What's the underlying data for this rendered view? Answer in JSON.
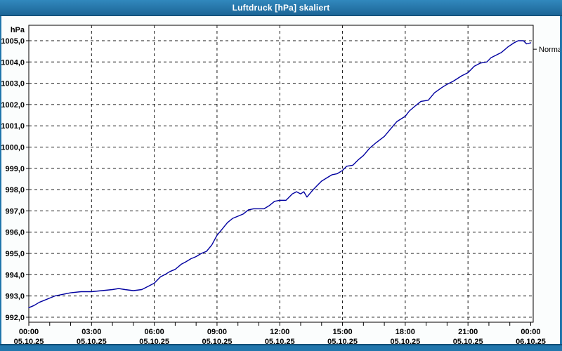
{
  "window": {
    "title": "Luftdruck [hPa] skaliert",
    "frame_color": "#2176ac",
    "titlebar_top_color": "#3188bd",
    "titlebar_bottom_color": "#1c6596"
  },
  "chart_data": {
    "type": "line",
    "title": "Luftdruck [hPa] skaliert",
    "grid": true,
    "plot_background": "#ffffff",
    "grid_color": "#1a1a1a",
    "ylim": [
      991.75,
      1005.73
    ],
    "xlim_hours": [
      0,
      24
    ],
    "y_axis": {
      "unit_label": "hPa",
      "ticks": [
        {
          "value": 1005,
          "label": "1005,0"
        },
        {
          "value": 1004,
          "label": "1004,0"
        },
        {
          "value": 1003,
          "label": "1003,0"
        },
        {
          "value": 1002,
          "label": "1002,0"
        },
        {
          "value": 1001,
          "label": "1001,0"
        },
        {
          "value": 1000,
          "label": "1000,0"
        },
        {
          "value": 999,
          "label": "999,0"
        },
        {
          "value": 998,
          "label": "998,0"
        },
        {
          "value": 997,
          "label": "997,0"
        },
        {
          "value": 996,
          "label": "996,0"
        },
        {
          "value": 995,
          "label": "995,0"
        },
        {
          "value": 994,
          "label": "994,0"
        },
        {
          "value": 993,
          "label": "993,0"
        },
        {
          "value": 992,
          "label": "992,0"
        }
      ]
    },
    "x_axis": {
      "minor_tick_hours": 1,
      "gridline_hours": [
        3,
        6,
        9,
        12,
        15,
        18,
        21
      ],
      "labels": [
        {
          "hour": 0,
          "time": "00:00",
          "date": "05.10.25"
        },
        {
          "hour": 3,
          "time": "03:00",
          "date": "05.10.25"
        },
        {
          "hour": 6,
          "time": "06:00",
          "date": "05.10.25"
        },
        {
          "hour": 9,
          "time": "09:00",
          "date": "05.10.25"
        },
        {
          "hour": 12,
          "time": "12:00",
          "date": "05.10.25"
        },
        {
          "hour": 15,
          "time": "15:00",
          "date": "05.10.25"
        },
        {
          "hour": 18,
          "time": "18:00",
          "date": "05.10.25"
        },
        {
          "hour": 21,
          "time": "21:00",
          "date": "05.10.25"
        },
        {
          "hour": 24,
          "time": "00:00",
          "date": "06.10.25"
        }
      ]
    },
    "series": [
      {
        "name": "Luftdruck",
        "color": "#0000a0",
        "points_hour_hpa": [
          [
            0,
            992.45
          ],
          [
            0.25,
            992.55
          ],
          [
            0.5,
            992.7
          ],
          [
            0.75,
            992.8
          ],
          [
            1,
            992.9
          ],
          [
            1.25,
            993.0
          ],
          [
            1.5,
            993.05
          ],
          [
            1.75,
            993.1
          ],
          [
            2,
            993.15
          ],
          [
            2.5,
            993.2
          ],
          [
            3,
            993.2
          ],
          [
            3.5,
            993.25
          ],
          [
            4,
            993.3
          ],
          [
            4.3,
            993.35
          ],
          [
            4.6,
            993.3
          ],
          [
            5,
            993.25
          ],
          [
            5.4,
            993.3
          ],
          [
            5.7,
            993.45
          ],
          [
            6,
            993.6
          ],
          [
            6.3,
            993.9
          ],
          [
            6.5,
            994.0
          ],
          [
            6.75,
            994.15
          ],
          [
            7,
            994.25
          ],
          [
            7.3,
            994.5
          ],
          [
            7.5,
            994.6
          ],
          [
            7.75,
            994.75
          ],
          [
            8,
            994.85
          ],
          [
            8.25,
            995.0
          ],
          [
            8.5,
            995.1
          ],
          [
            8.75,
            995.4
          ],
          [
            9,
            995.85
          ],
          [
            9.25,
            996.15
          ],
          [
            9.5,
            996.45
          ],
          [
            9.75,
            996.65
          ],
          [
            10,
            996.75
          ],
          [
            10.25,
            996.85
          ],
          [
            10.5,
            997.05
          ],
          [
            10.75,
            997.1
          ],
          [
            11.25,
            997.1
          ],
          [
            11.5,
            997.25
          ],
          [
            11.75,
            997.45
          ],
          [
            12,
            997.5
          ],
          [
            12.3,
            997.5
          ],
          [
            12.6,
            997.8
          ],
          [
            12.8,
            997.9
          ],
          [
            13,
            997.8
          ],
          [
            13.15,
            997.9
          ],
          [
            13.3,
            997.65
          ],
          [
            13.6,
            998.0
          ],
          [
            13.8,
            998.2
          ],
          [
            14,
            998.4
          ],
          [
            14.25,
            998.55
          ],
          [
            14.5,
            998.7
          ],
          [
            14.75,
            998.75
          ],
          [
            15,
            998.9
          ],
          [
            15.2,
            999.1
          ],
          [
            15.5,
            999.15
          ],
          [
            15.75,
            999.4
          ],
          [
            16,
            999.6
          ],
          [
            16.3,
            999.95
          ],
          [
            16.6,
            1000.2
          ],
          [
            17,
            1000.5
          ],
          [
            17.3,
            1000.85
          ],
          [
            17.6,
            1001.2
          ],
          [
            18,
            1001.45
          ],
          [
            18.2,
            1001.7
          ],
          [
            18.5,
            1001.95
          ],
          [
            18.75,
            1002.15
          ],
          [
            19.1,
            1002.2
          ],
          [
            19.4,
            1002.55
          ],
          [
            19.75,
            1002.8
          ],
          [
            20,
            1002.95
          ],
          [
            20.3,
            1003.1
          ],
          [
            20.7,
            1003.35
          ],
          [
            21,
            1003.5
          ],
          [
            21.3,
            1003.8
          ],
          [
            21.6,
            1003.95
          ],
          [
            21.9,
            1004.0
          ],
          [
            22.1,
            1004.2
          ],
          [
            22.4,
            1004.35
          ],
          [
            22.6,
            1004.45
          ],
          [
            22.9,
            1004.7
          ],
          [
            23.2,
            1004.9
          ],
          [
            23.4,
            1005.0
          ],
          [
            23.65,
            1005.0
          ],
          [
            23.8,
            1004.85
          ],
          [
            24,
            1004.9
          ]
        ]
      }
    ],
    "annotations": [
      {
        "label": "Normal",
        "value_hpa": 1004.6,
        "side": "right"
      }
    ]
  }
}
